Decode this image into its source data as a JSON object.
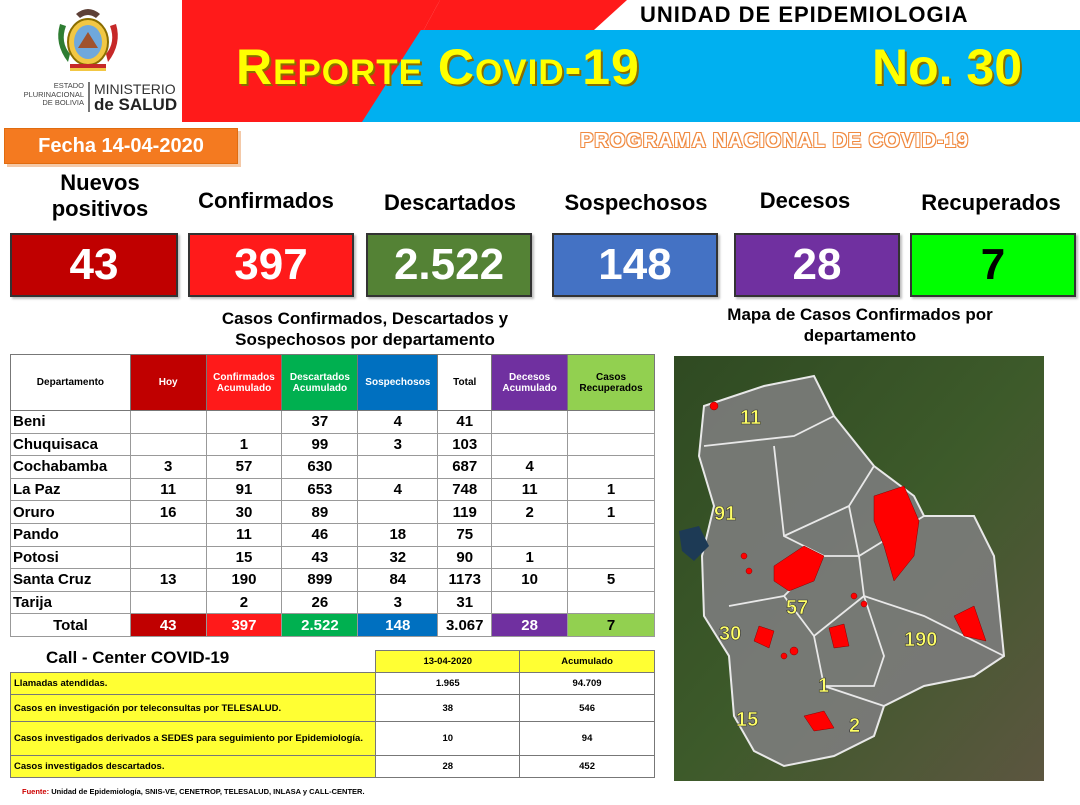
{
  "header": {
    "ministry_left_lines": [
      "ESTADO",
      "PLURINACIONAL",
      "DE BOLIVIA"
    ],
    "ministry_right_line1": "MINISTERIO",
    "ministry_right_line2": "de SALUD",
    "unit_title": "UNIDAD DE EPIDEMIOLOGIA",
    "report_title": "Reporte Covid-19",
    "report_number": "No. 30",
    "fecha": "Fecha 14-04-2020",
    "programa": "PROGRAMA NACIONAL DE COVID-19"
  },
  "stats": [
    {
      "label": "Nuevos positivos",
      "value": "43",
      "color": "#c00000"
    },
    {
      "label": "Confirmados",
      "value": "397",
      "color": "#ff1a1a"
    },
    {
      "label": "Descartados",
      "value": "2.522",
      "color": "#548235"
    },
    {
      "label": "Sospechosos",
      "value": "148",
      "color": "#4472c4"
    },
    {
      "label": "Decesos",
      "value": "28",
      "color": "#7030a0"
    },
    {
      "label": "Recuperados",
      "value": "7",
      "color": "#00ff00"
    }
  ],
  "dept_table": {
    "title": "Casos Confirmados, Descartados y Sospechosos por departamento",
    "headers": [
      "Departamento",
      "Hoy",
      "Confirmados Acumulado",
      "Descartados Acumulado",
      "Sospechosos",
      "Total",
      "Decesos Acumulado",
      "Casos Recuperados"
    ],
    "header_colors": [
      "#ffffff",
      "#c00000",
      "#ff1a1a",
      "#00b050",
      "#0070c0",
      "#ffffff",
      "#7030a0",
      "#92d050"
    ],
    "rows": [
      [
        "Beni",
        "",
        "",
        "37",
        "4",
        "41",
        "",
        ""
      ],
      [
        "Chuquisaca",
        "",
        "1",
        "99",
        "3",
        "103",
        "",
        ""
      ],
      [
        "Cochabamba",
        "3",
        "57",
        "630",
        "",
        "687",
        "4",
        ""
      ],
      [
        "La Paz",
        "11",
        "91",
        "653",
        "4",
        "748",
        "11",
        "1"
      ],
      [
        "Oruro",
        "16",
        "30",
        "89",
        "",
        "119",
        "2",
        "1"
      ],
      [
        "Pando",
        "",
        "11",
        "46",
        "18",
        "75",
        "",
        ""
      ],
      [
        "Potosi",
        "",
        "15",
        "43",
        "32",
        "90",
        "1",
        ""
      ],
      [
        "Santa Cruz",
        "13",
        "190",
        "899",
        "84",
        "1173",
        "10",
        "5"
      ],
      [
        "Tarija",
        "",
        "2",
        "26",
        "3",
        "31",
        "",
        ""
      ]
    ],
    "total": [
      "Total",
      "43",
      "397",
      "2.522",
      "148",
      "3.067",
      "28",
      "7"
    ]
  },
  "call_center": {
    "title": "Call  - Center COVID-19",
    "col_date": "13-04-2020",
    "col_acum": "Acumulado",
    "rows": [
      {
        "label": "Llamadas  atendidas.",
        "date": "1.965",
        "acum": "94.709"
      },
      {
        "label": "Casos en investigación por teleconsultas por TELESALUD.",
        "date": "38",
        "acum": "546"
      },
      {
        "label": "Casos investigados derivados a SEDES para seguimiento por Epidemiología.",
        "date": "10",
        "acum": "94"
      },
      {
        "label": "Casos investigados descartados.",
        "date": "28",
        "acum": "452"
      }
    ]
  },
  "source": {
    "label": "Fuente:",
    "text": "Unidad de Epidemiología, SNIS-VE, CENETROP, TELESALUD, INLASA y CALL-CENTER."
  },
  "map": {
    "title": "Mapa de Casos Confirmados por departamento",
    "labels": {
      "pando": "11",
      "la_paz": "91",
      "cochabamba": "57",
      "oruro": "30",
      "santa_cruz": "190",
      "chuquisaca": "1",
      "potosi": "15",
      "tarija": "2"
    }
  }
}
